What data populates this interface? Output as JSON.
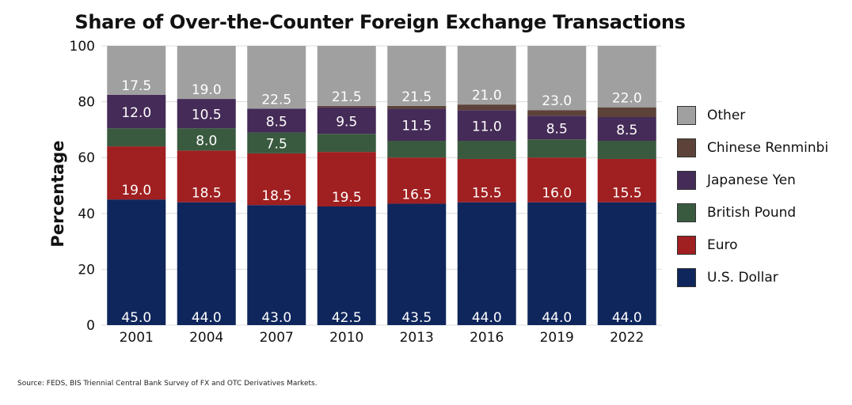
{
  "chart_data": {
    "type": "bar",
    "stacked": true,
    "title": "Share of Over-the-Counter Foreign Exchange Transactions",
    "xlabel": "",
    "ylabel": "Percentage",
    "ylim": [
      0,
      100
    ],
    "yticks": [
      "0",
      "20",
      "40",
      "60",
      "80",
      "100"
    ],
    "grid": true,
    "legend_position": "right",
    "categories": [
      "2001",
      "2004",
      "2007",
      "2010",
      "2013",
      "2016",
      "2019",
      "2022"
    ],
    "series": [
      {
        "name": "U.S. Dollar",
        "color": "#0f265c",
        "values": [
          45.0,
          44.0,
          43.0,
          42.5,
          43.5,
          44.0,
          44.0,
          44.0
        ],
        "labels": [
          "45.0",
          "44.0",
          "43.0",
          "42.5",
          "43.5",
          "44.0",
          "44.0",
          "44.0"
        ]
      },
      {
        "name": "Euro",
        "color": "#a01f20",
        "values": [
          19.0,
          18.5,
          18.5,
          19.5,
          16.5,
          15.5,
          16.0,
          15.5
        ],
        "labels": [
          "19.0",
          "18.5",
          "18.5",
          "19.5",
          "16.5",
          "15.5",
          "16.0",
          "15.5"
        ]
      },
      {
        "name": "British Pound",
        "color": "#3a5a40",
        "values": [
          6.5,
          8.0,
          7.5,
          6.5,
          6.0,
          6.5,
          6.5,
          6.5
        ],
        "labels": [
          "",
          "8.0",
          "7.5",
          "",
          "",
          "",
          "",
          ""
        ]
      },
      {
        "name": "Japanese Yen",
        "color": "#452b57",
        "values": [
          12.0,
          10.5,
          8.5,
          9.5,
          11.5,
          11.0,
          8.5,
          8.5
        ],
        "labels": [
          "12.0",
          "10.5",
          "8.5",
          "9.5",
          "11.5",
          "11.0",
          "8.5",
          "8.5"
        ]
      },
      {
        "name": "Chinese Renminbi",
        "color": "#5c4238",
        "values": [
          0,
          0,
          0,
          0.5,
          1.0,
          2.0,
          2.0,
          3.5
        ],
        "labels": [
          "",
          "",
          "",
          "",
          "",
          "",
          "",
          ""
        ]
      },
      {
        "name": "Other",
        "color": "#a0a0a0",
        "values": [
          17.5,
          19.0,
          22.5,
          21.5,
          21.5,
          21.0,
          23.0,
          22.0
        ],
        "labels": [
          "17.5",
          "19.0",
          "22.5",
          "21.5",
          "21.5",
          "21.0",
          "23.0",
          "22.0"
        ]
      }
    ],
    "legend_order": [
      "Other",
      "Chinese Renminbi",
      "Japanese Yen",
      "British Pound",
      "Euro",
      "U.S. Dollar"
    ],
    "source": "Source: FEDS, BIS Triennial Central Bank Survey of FX and OTC Derivatives Markets."
  }
}
